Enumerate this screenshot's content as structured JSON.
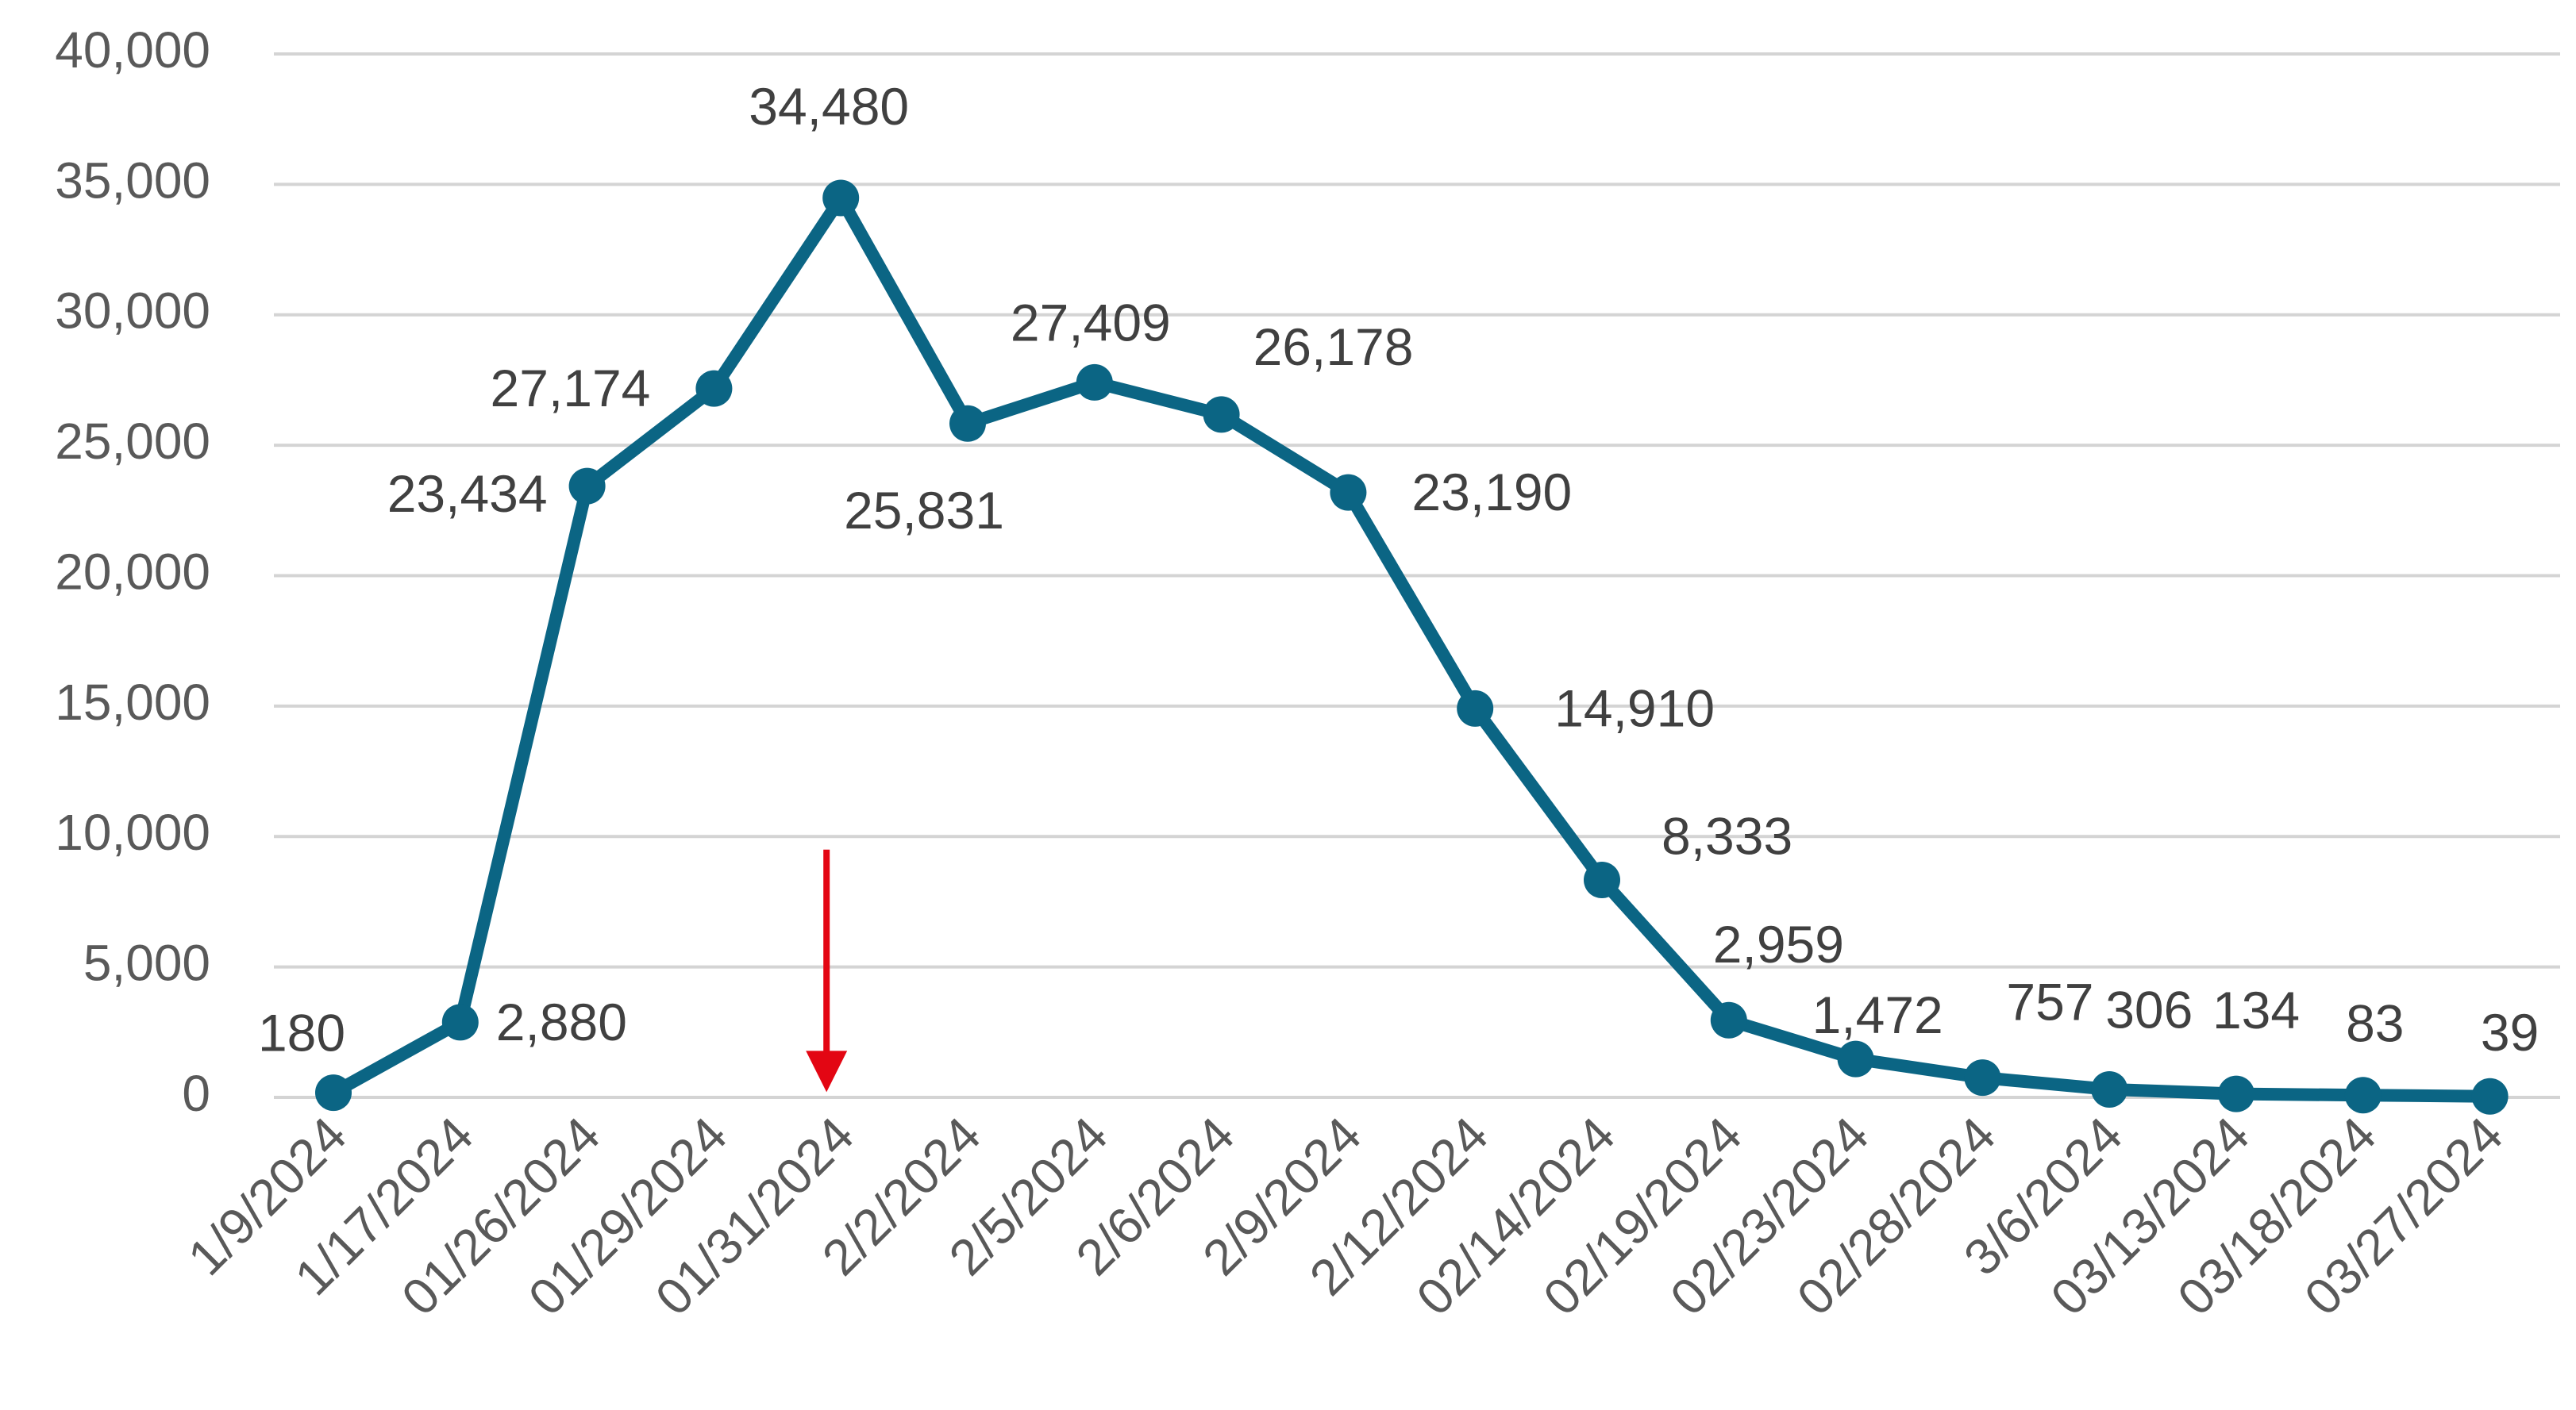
{
  "chart_data": {
    "type": "line",
    "title": "",
    "xlabel": "",
    "ylabel": "",
    "ylim": [
      0,
      40000
    ],
    "y_ticks": [
      0,
      5000,
      10000,
      15000,
      20000,
      25000,
      30000,
      35000,
      40000
    ],
    "y_tick_labels": [
      "0",
      "5,000",
      "10,000",
      "15,000",
      "20,000",
      "25,000",
      "30,000",
      "35,000",
      "40,000"
    ],
    "grid": true,
    "legend": "none",
    "categories": [
      "1/9/2024",
      "1/17/2024",
      "01/26/2024",
      "01/29/2024",
      "01/31/2024",
      "2/2/2024",
      "2/5/2024",
      "2/6/2024",
      "2/9/2024",
      "2/12/2024",
      "02/14/2024",
      "02/19/2024",
      "02/23/2024",
      "02/28/2024",
      "3/6/2024",
      "03/13/2024",
      "03/18/2024",
      "03/27/2024"
    ],
    "series": [
      {
        "color": "#0b6584",
        "values": [
          180,
          2880,
          23434,
          27174,
          34480,
          25831,
          27409,
          26178,
          23190,
          14910,
          8333,
          2959,
          1472,
          757,
          306,
          134,
          83,
          39
        ],
        "labels": [
          "180",
          "2,880",
          "23,434",
          "27,174",
          "34,480",
          "25,831",
          "27,409",
          "26,178",
          "23,190",
          "14,910",
          "8,333",
          "2,959",
          "1,472",
          "757",
          "306",
          "134",
          "83",
          "39"
        ]
      }
    ],
    "annotations": [
      {
        "type": "arrow",
        "color": "#e30613",
        "category": "01/31/2024",
        "from_value": 9500,
        "to_value": 200
      }
    ]
  }
}
